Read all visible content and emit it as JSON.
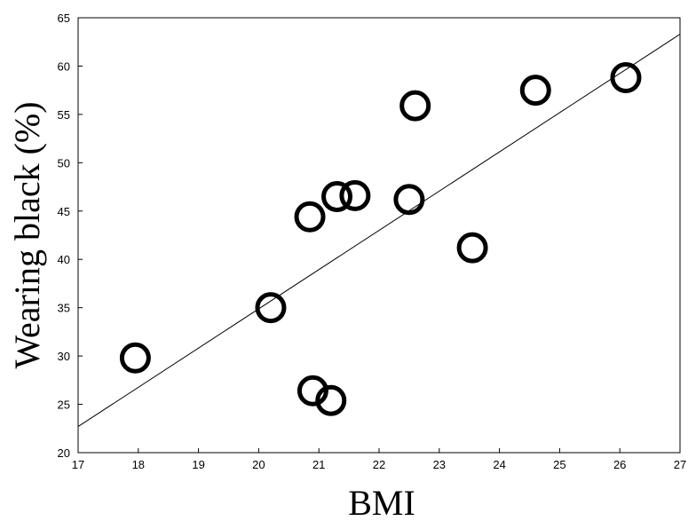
{
  "chart_data": {
    "type": "scatter",
    "xlabel": "BMI",
    "ylabel": "Wearing black (%)",
    "xlim": [
      17,
      27
    ],
    "ylim": [
      20,
      65
    ],
    "x_ticks": [
      "17",
      "18",
      "19",
      "20",
      "21",
      "22",
      "23",
      "24",
      "25",
      "26",
      "27"
    ],
    "y_ticks": [
      "20",
      "25",
      "30",
      "35",
      "40",
      "45",
      "50",
      "55",
      "60",
      "65"
    ],
    "points": [
      {
        "x": 17.95,
        "y": 29.8
      },
      {
        "x": 20.2,
        "y": 35.0
      },
      {
        "x": 20.85,
        "y": 44.4
      },
      {
        "x": 20.9,
        "y": 26.4
      },
      {
        "x": 21.2,
        "y": 25.4
      },
      {
        "x": 21.3,
        "y": 46.5
      },
      {
        "x": 21.6,
        "y": 46.6
      },
      {
        "x": 22.5,
        "y": 46.2
      },
      {
        "x": 22.6,
        "y": 55.9
      },
      {
        "x": 23.55,
        "y": 41.2
      },
      {
        "x": 24.6,
        "y": 57.5
      },
      {
        "x": 26.1,
        "y": 58.8
      }
    ],
    "fit_line": {
      "x": [
        17,
        27
      ],
      "y": [
        22.7,
        63.3
      ]
    },
    "marker": "open-circle",
    "marker_color": "#000000",
    "line_color": "#000000",
    "grid": false,
    "legend": "none"
  }
}
